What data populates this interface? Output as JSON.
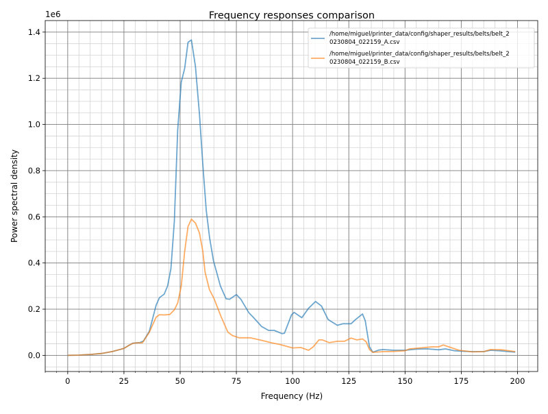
{
  "chart_data": {
    "type": "line",
    "title": "Frequency responses comparison",
    "xlabel": "Frequency (Hz)",
    "ylabel": "Power spectral density",
    "y_offset_label": "1e6",
    "xlim": [
      -10,
      209
    ],
    "ylim": [
      -0.07,
      1.45
    ],
    "x_ticks": [
      0,
      25,
      50,
      75,
      100,
      125,
      150,
      175,
      200
    ],
    "x_tick_labels": [
      "0",
      "25",
      "50",
      "75",
      "100",
      "125",
      "150",
      "175",
      "200"
    ],
    "y_ticks": [
      0,
      0.2,
      0.4,
      0.6,
      0.8,
      1.0,
      1.2,
      1.4
    ],
    "y_tick_labels": [
      "0.0",
      "0.2",
      "0.4",
      "0.6",
      "0.8",
      "1.0",
      "1.2",
      "1.4"
    ],
    "x_minor_step": 5,
    "y_minor_step": 0.05,
    "grid": {
      "major": true,
      "minor": true,
      "major_color": "#808080",
      "minor_color": "#d3d3d3"
    },
    "legend_placement": "upper-right",
    "series": [
      {
        "name": "/home/miguel/printer_data/config/shaper_results/belts/belt_20230804_022159_A.csv",
        "legend_lines": [
          "/home/miguel/printer_data/config/shaper_results/belts/belt_2",
          "0230804_022159_A.csv"
        ],
        "color": "#1f77b4",
        "points": [
          [
            0,
            0
          ],
          [
            5,
            0.001
          ],
          [
            10,
            0.004
          ],
          [
            15,
            0.008
          ],
          [
            20,
            0.017
          ],
          [
            25,
            0.03
          ],
          [
            27.5,
            0.045
          ],
          [
            29,
            0.053
          ],
          [
            30.7,
            0.054
          ],
          [
            32,
            0.055
          ],
          [
            33.7,
            0.062
          ],
          [
            36.3,
            0.104
          ],
          [
            39.3,
            0.217
          ],
          [
            40.8,
            0.25
          ],
          [
            42.9,
            0.265
          ],
          [
            44.4,
            0.3
          ],
          [
            45.9,
            0.375
          ],
          [
            47.4,
            0.58
          ],
          [
            48.9,
            0.975
          ],
          [
            50.5,
            1.183
          ],
          [
            52,
            1.243
          ],
          [
            53.5,
            1.356
          ],
          [
            55,
            1.366
          ],
          [
            56.8,
            1.252
          ],
          [
            58.6,
            1.044
          ],
          [
            60.1,
            0.826
          ],
          [
            61.6,
            0.628
          ],
          [
            63.1,
            0.509
          ],
          [
            64.8,
            0.41
          ],
          [
            67.9,
            0.3
          ],
          [
            70.4,
            0.245
          ],
          [
            72,
            0.243
          ],
          [
            75,
            0.263
          ],
          [
            77,
            0.243
          ],
          [
            80.6,
            0.184
          ],
          [
            82.7,
            0.163
          ],
          [
            86.2,
            0.125
          ],
          [
            89.3,
            0.108
          ],
          [
            91.8,
            0.108
          ],
          [
            95.4,
            0.094
          ],
          [
            96.4,
            0.096
          ],
          [
            99.5,
            0.175
          ],
          [
            100.7,
            0.186
          ],
          [
            104.1,
            0.163
          ],
          [
            107.1,
            0.204
          ],
          [
            110.2,
            0.233
          ],
          [
            112.8,
            0.214
          ],
          [
            115.8,
            0.155
          ],
          [
            119.9,
            0.13
          ],
          [
            122.4,
            0.137
          ],
          [
            126,
            0.137
          ],
          [
            128,
            0.155
          ],
          [
            131.1,
            0.179
          ],
          [
            132.3,
            0.15
          ],
          [
            134.2,
            0.037
          ],
          [
            135.7,
            0.013
          ],
          [
            138.3,
            0.023
          ],
          [
            140.3,
            0.025
          ],
          [
            145,
            0.022
          ],
          [
            150,
            0.022
          ],
          [
            155,
            0.027
          ],
          [
            160,
            0.028
          ],
          [
            165,
            0.024
          ],
          [
            168,
            0.028
          ],
          [
            172,
            0.02
          ],
          [
            175,
            0.018
          ],
          [
            180,
            0.016
          ],
          [
            185,
            0.016
          ],
          [
            188,
            0.022
          ],
          [
            192,
            0.02
          ],
          [
            196,
            0.016
          ],
          [
            199,
            0.014
          ]
        ]
      },
      {
        "name": "/home/miguel/printer_data/config/shaper_results/belts/belt_20230804_022159_B.csv",
        "legend_lines": [
          "/home/miguel/printer_data/config/shaper_results/belts/belt_2",
          "0230804_022159_B.csv"
        ],
        "color": "#ff7f0e",
        "points": [
          [
            0,
            0
          ],
          [
            5,
            0.001
          ],
          [
            10,
            0.004
          ],
          [
            15,
            0.008
          ],
          [
            20,
            0.017
          ],
          [
            25,
            0.03
          ],
          [
            27.5,
            0.045
          ],
          [
            29,
            0.052
          ],
          [
            30.7,
            0.054
          ],
          [
            33.2,
            0.054
          ],
          [
            36.3,
            0.1
          ],
          [
            39.3,
            0.165
          ],
          [
            40.8,
            0.176
          ],
          [
            42.9,
            0.175
          ],
          [
            45.4,
            0.177
          ],
          [
            47.4,
            0.197
          ],
          [
            48.9,
            0.227
          ],
          [
            50.5,
            0.3
          ],
          [
            52,
            0.45
          ],
          [
            53.5,
            0.558
          ],
          [
            55,
            0.59
          ],
          [
            56.8,
            0.573
          ],
          [
            58.6,
            0.53
          ],
          [
            60.1,
            0.45
          ],
          [
            61.1,
            0.36
          ],
          [
            63,
            0.285
          ],
          [
            65.1,
            0.245
          ],
          [
            68.1,
            0.17
          ],
          [
            71.2,
            0.101
          ],
          [
            73.2,
            0.086
          ],
          [
            76.2,
            0.076
          ],
          [
            78.6,
            0.076
          ],
          [
            81.1,
            0.076
          ],
          [
            86.2,
            0.065
          ],
          [
            90.3,
            0.055
          ],
          [
            94.4,
            0.047
          ],
          [
            100,
            0.032
          ],
          [
            103.6,
            0.034
          ],
          [
            107.1,
            0.022
          ],
          [
            109.2,
            0.037
          ],
          [
            111.7,
            0.067
          ],
          [
            113.3,
            0.067
          ],
          [
            116.3,
            0.055
          ],
          [
            119.9,
            0.061
          ],
          [
            123,
            0.061
          ],
          [
            126,
            0.075
          ],
          [
            128.6,
            0.067
          ],
          [
            131.1,
            0.071
          ],
          [
            132.7,
            0.059
          ],
          [
            134.2,
            0.025
          ],
          [
            135.7,
            0.013
          ],
          [
            140.3,
            0.016
          ],
          [
            145,
            0.017
          ],
          [
            150,
            0.02
          ],
          [
            152,
            0.028
          ],
          [
            158,
            0.033
          ],
          [
            162,
            0.037
          ],
          [
            165,
            0.037
          ],
          [
            167,
            0.045
          ],
          [
            170,
            0.035
          ],
          [
            174,
            0.022
          ],
          [
            180,
            0.015
          ],
          [
            185,
            0.016
          ],
          [
            188,
            0.025
          ],
          [
            193,
            0.024
          ],
          [
            196,
            0.02
          ],
          [
            199,
            0.016
          ]
        ]
      }
    ]
  }
}
